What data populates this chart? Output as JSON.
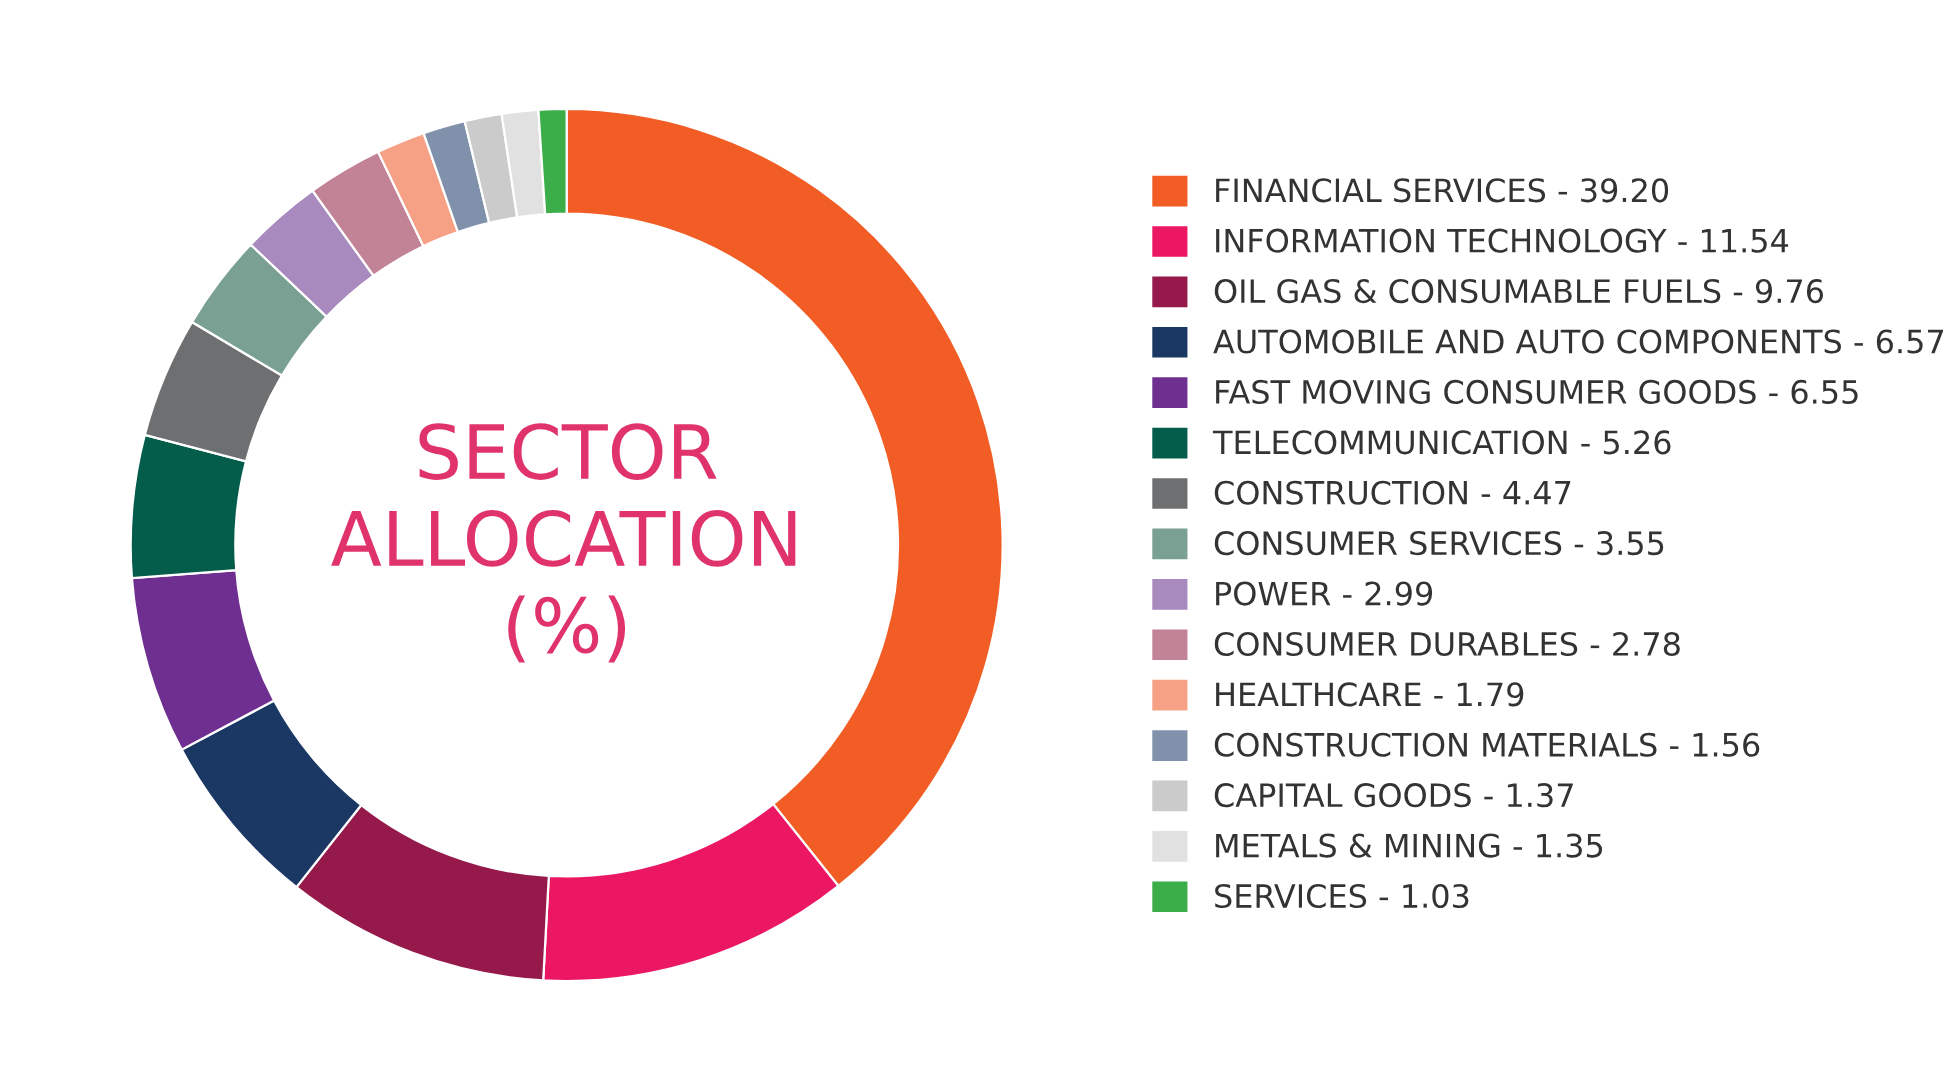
{
  "chart_data": {
    "type": "donut",
    "title": "SECTOR\nALLOCATION\n(%)",
    "categories": [
      "FINANCIAL SERVICES",
      "INFORMATION TECHNOLOGY",
      "OIL GAS & CONSUMABLE FUELS",
      "AUTOMOBILE AND AUTO COMPONENTS",
      "FAST MOVING CONSUMER GOODS",
      "TELECOMMUNICATION",
      "CONSTRUCTION",
      "CONSUMER SERVICES",
      "POWER",
      "CONSUMER DURABLES",
      "HEALTHCARE",
      "CONSTRUCTION MATERIALS",
      "CAPITAL GOODS",
      "METALS & MINING",
      "SERVICES"
    ],
    "values": [
      39.2,
      11.54,
      9.76,
      6.57,
      6.55,
      5.26,
      4.47,
      3.55,
      2.99,
      2.78,
      1.79,
      1.56,
      1.37,
      1.35,
      1.03
    ],
    "value_labels": [
      "39.20",
      "11.54",
      "9.76",
      "6.57",
      "6.55",
      "5.26",
      "4.47",
      "3.55",
      "2.99",
      "2.78",
      "1.79",
      "1.56",
      "1.37",
      "1.35",
      "1.03"
    ],
    "colors": [
      "#f15d24",
      "#ec1763",
      "#95194b",
      "#1b3763",
      "#6e2f91",
      "#045c4b",
      "#6e6f71",
      "#7aa093",
      "#a98abf",
      "#c38396",
      "#f6a185",
      "#8091ab",
      "#cbcbcb",
      "#e1e1e1",
      "#3bae49"
    ],
    "legend": "right"
  }
}
